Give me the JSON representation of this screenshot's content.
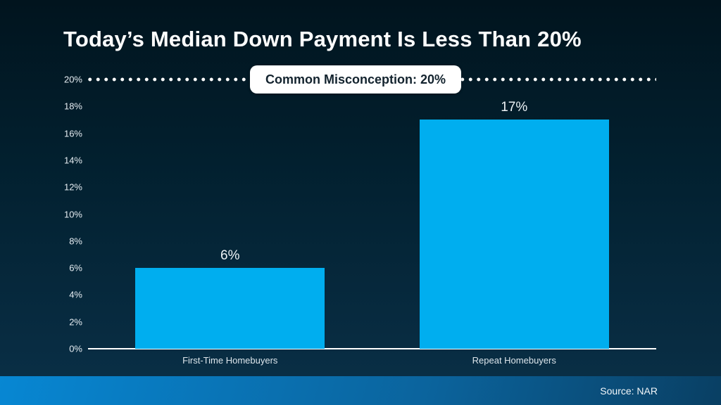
{
  "title": "Today’s Median Down Payment Is Less Than 20%",
  "annotation": {
    "label": "Common Misconception: 20%"
  },
  "footer": {
    "source": "Source: NAR"
  },
  "colors": {
    "bar_fill": "#00AEEF",
    "bg_top": "#01141E",
    "bg_mid": "#02202F",
    "bg_bottom": "#0A3048",
    "footer_left": "#0787D3",
    "footer_mid": "#0B639C",
    "footer_right": "#093F63",
    "pill_bg": "#FFFFFF",
    "pill_text": "#13232E",
    "axis_color": "#FFFFFF"
  },
  "chart_data": {
    "type": "bar",
    "title": "Today’s Median Down Payment Is Less Than 20%",
    "categories": [
      "First-Time Homebuyers",
      "Repeat Homebuyers"
    ],
    "values": [
      6,
      17
    ],
    "value_labels": [
      "6%",
      "17%"
    ],
    "xlabel": "",
    "ylabel": "",
    "ylim": [
      0,
      20
    ],
    "yticks": [
      0,
      2,
      4,
      6,
      8,
      10,
      12,
      14,
      16,
      18,
      20
    ],
    "ytick_labels": [
      "0%",
      "2%",
      "4%",
      "6%",
      "8%",
      "10%",
      "12%",
      "14%",
      "16%",
      "18%",
      "20%"
    ],
    "grid": false,
    "legend": false,
    "reference_line": {
      "value": 20,
      "style": "dotted",
      "label": "Common Misconception: 20%"
    },
    "bar_width_fraction": 0.667
  }
}
